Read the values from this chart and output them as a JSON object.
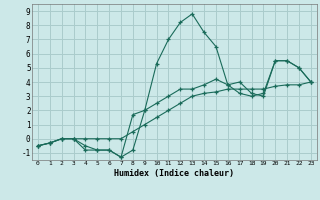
{
  "xlabel": "Humidex (Indice chaleur)",
  "bg_color": "#cce8e8",
  "grid_color": "#aacccc",
  "line_color": "#1a6b5a",
  "xlim": [
    -0.5,
    23.5
  ],
  "ylim": [
    -1.5,
    9.5
  ],
  "xticks": [
    0,
    1,
    2,
    3,
    4,
    5,
    6,
    7,
    8,
    9,
    10,
    11,
    12,
    13,
    14,
    15,
    16,
    17,
    18,
    19,
    20,
    21,
    22,
    23
  ],
  "yticks": [
    -1,
    0,
    1,
    2,
    3,
    4,
    5,
    6,
    7,
    8,
    9
  ],
  "line1_x": [
    0,
    1,
    2,
    3,
    4,
    5,
    6,
    7,
    8,
    9,
    10,
    11,
    12,
    13,
    14,
    15,
    16,
    17,
    18,
    19,
    20,
    21,
    22,
    23
  ],
  "line1_y": [
    -0.5,
    -0.3,
    0.0,
    0.0,
    0.0,
    0.0,
    0.0,
    0.0,
    0.5,
    1.0,
    1.5,
    2.0,
    2.5,
    3.0,
    3.2,
    3.3,
    3.5,
    3.5,
    3.5,
    3.5,
    3.7,
    3.8,
    3.8,
    4.0
  ],
  "line2_x": [
    0,
    1,
    2,
    3,
    4,
    5,
    6,
    7,
    8,
    9,
    10,
    11,
    12,
    13,
    14,
    15,
    16,
    17,
    18,
    19,
    20,
    21,
    22,
    23
  ],
  "line2_y": [
    -0.5,
    -0.3,
    0.0,
    0.0,
    -0.8,
    -0.8,
    -0.8,
    -1.3,
    -0.8,
    2.0,
    5.3,
    7.0,
    8.2,
    8.8,
    7.5,
    6.5,
    3.8,
    4.0,
    3.2,
    3.0,
    5.5,
    5.5,
    5.0,
    4.0
  ],
  "line3_x": [
    0,
    1,
    2,
    3,
    4,
    5,
    6,
    7,
    8,
    9,
    10,
    11,
    12,
    13,
    14,
    15,
    16,
    17,
    18,
    19,
    20,
    21,
    22,
    23
  ],
  "line3_y": [
    -0.5,
    -0.3,
    0.0,
    0.0,
    -0.5,
    -0.8,
    -0.8,
    -1.3,
    1.7,
    2.0,
    2.5,
    3.0,
    3.5,
    3.5,
    3.8,
    4.2,
    3.8,
    3.2,
    3.0,
    3.2,
    5.5,
    5.5,
    5.0,
    4.0
  ]
}
